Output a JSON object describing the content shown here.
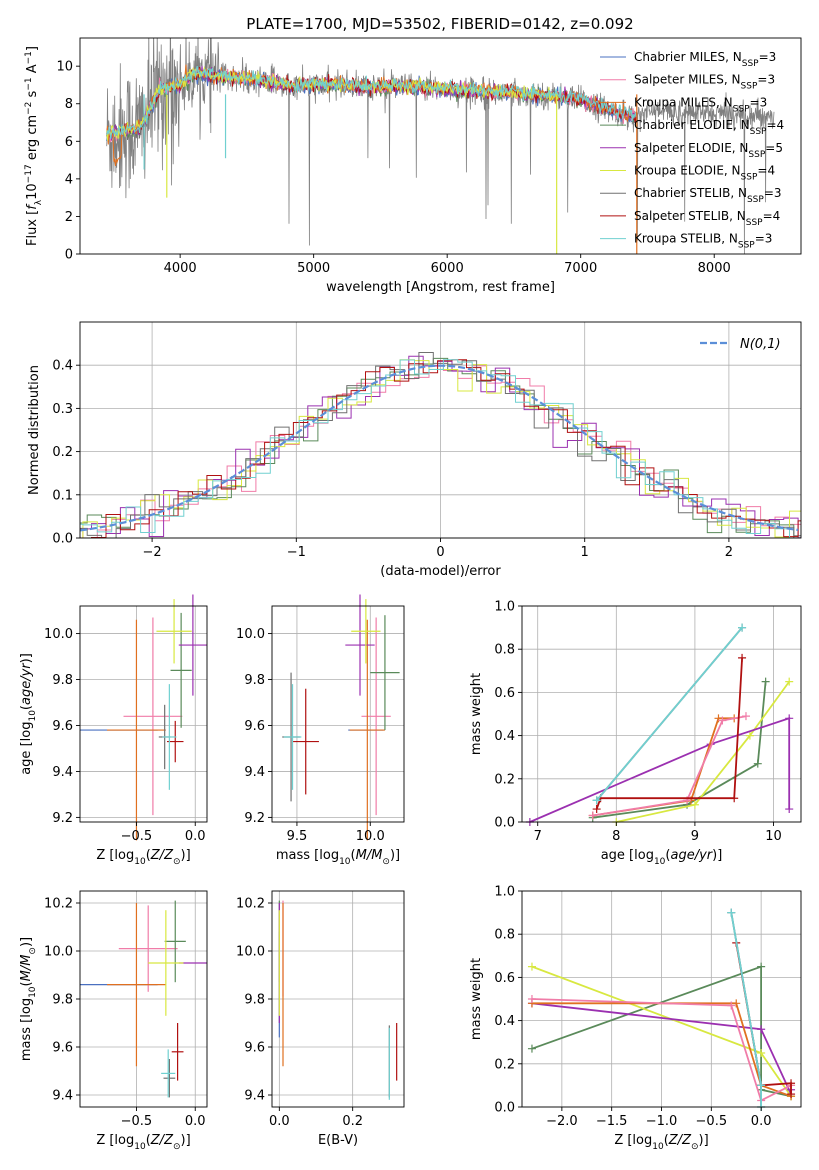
{
  "figure_title": "PLATE=1700, MJD=53502, FIBERID=0142, z=0.092",
  "models": [
    {
      "name": "Chabrier MILES, N_SSP=3",
      "color": "#4a70c0"
    },
    {
      "name": "Salpeter MILES, N_SSP=3",
      "color": "#f07ca8"
    },
    {
      "name": "Kroupa MILES, N_SSP=3",
      "color": "#e07020"
    },
    {
      "name": "Chabrier ELODIE, N_SSP=4",
      "color": "#5a8a5a"
    },
    {
      "name": "Salpeter ELODIE, N_SSP=5",
      "color": "#9b30b0"
    },
    {
      "name": "Kroupa ELODIE, N_SSP=4",
      "color": "#d8e840"
    },
    {
      "name": "Chabrier STELIB, N_SSP=3",
      "color": "#707070"
    },
    {
      "name": "Salpeter STELIB, N_SSP=4",
      "color": "#b01010"
    },
    {
      "name": "Kroupa STELIB, N_SSP=3",
      "color": "#70d0d0"
    }
  ],
  "chart_data": [
    {
      "id": "spectrum",
      "type": "line",
      "xlabel": "wavelength [Angstrom, rest frame]",
      "ylabel": "Flux [f_λ 10^-17 erg cm^-2 s^-1 A^-1]",
      "xlim": [
        3250,
        8650
      ],
      "ylim": [
        0,
        11.5
      ],
      "xticks": [
        4000,
        5000,
        6000,
        7000,
        8000
      ],
      "yticks": [
        0,
        2,
        4,
        6,
        8,
        10
      ],
      "grid": false,
      "legend": "right",
      "model_x": [
        3450,
        3550,
        3700,
        3850,
        4000,
        4100,
        4250,
        4400,
        4550,
        4700,
        4850,
        5000,
        5200,
        5400,
        5600,
        5800,
        6000,
        6200,
        6400,
        6600,
        6800,
        7000,
        7200,
        7400
      ],
      "model_y": [
        6.3,
        6.5,
        6.7,
        8.8,
        9.0,
        9.6,
        9.5,
        9.4,
        9.3,
        9.2,
        8.9,
        9.0,
        9.0,
        8.9,
        8.9,
        8.9,
        8.8,
        8.7,
        8.6,
        8.5,
        8.4,
        8.2,
        7.7,
        7.3
      ],
      "data_color": "#808080"
    },
    {
      "id": "residuals",
      "type": "histogram",
      "xlabel": "(data-model)/error",
      "ylabel": "Normed distribution",
      "xlim": [
        -2.5,
        2.5
      ],
      "ylim": [
        0,
        0.5
      ],
      "xticks": [
        -2,
        -1,
        0,
        1,
        2
      ],
      "yticks": [
        0.0,
        0.1,
        0.2,
        0.3,
        0.4
      ],
      "grid": true,
      "legend": "top-right",
      "reference": {
        "label": "N(0,1)",
        "mean": 0,
        "sigma": 1,
        "color": "#5b8fd8"
      },
      "bin_width": 0.1
    },
    {
      "id": "age_vs_Z",
      "type": "scatter",
      "xlabel": "Z [log10(Z/Z_sun)]",
      "ylabel": "age  [log10(age/yr)]",
      "xlim": [
        -0.98,
        0.1
      ],
      "ylim": [
        9.18,
        10.12
      ],
      "xticks": [
        -0.5,
        0.0
      ],
      "yticks": [
        9.2,
        9.4,
        9.6,
        9.8,
        10.0
      ],
      "grid": true,
      "points": [
        {
          "m": 0,
          "x": -0.65,
          "y": 9.58,
          "ex": 0.33,
          "ey": 0
        },
        {
          "m": 1,
          "x": -0.36,
          "y": 9.64,
          "ex": 0.25,
          "ey": 0.43
        },
        {
          "m": 2,
          "x": -0.5,
          "y": 9.58,
          "ex": 0.25,
          "ey": 0.48
        },
        {
          "m": 3,
          "x": -0.12,
          "y": 9.84,
          "ex": 0.09,
          "ey": 0.25
        },
        {
          "m": 4,
          "x": -0.02,
          "y": 9.95,
          "ex": 0.12,
          "ey": 0.22
        },
        {
          "m": 5,
          "x": -0.18,
          "y": 10.01,
          "ex": 0.15,
          "ey": 0.14
        },
        {
          "m": 6,
          "x": -0.26,
          "y": 9.55,
          "ex": 0.05,
          "ey": 0.14
        },
        {
          "m": 7,
          "x": -0.17,
          "y": 9.53,
          "ex": 0.07,
          "ey": 0.09
        },
        {
          "m": 8,
          "x": -0.22,
          "y": 9.55,
          "ex": 0.06,
          "ey": 0.23
        }
      ]
    },
    {
      "id": "age_vs_mass",
      "type": "scatter",
      "xlabel": "mass [log10(M/M_sun)]",
      "ylabel": "",
      "xlim": [
        9.33,
        10.23
      ],
      "ylim": [
        9.18,
        10.12
      ],
      "xticks": [
        9.5,
        10.0
      ],
      "yticks": [
        9.2,
        9.4,
        9.6,
        9.8,
        10.0
      ],
      "grid": true,
      "points": [
        {
          "m": 0,
          "x": 9.97,
          "y": 9.58,
          "ex": 0.12,
          "ey": 0
        },
        {
          "m": 1,
          "x": 10.04,
          "y": 9.64,
          "ex": 0.1,
          "ey": 0.43
        },
        {
          "m": 2,
          "x": 9.98,
          "y": 9.58,
          "ex": 0.12,
          "ey": 0.48
        },
        {
          "m": 3,
          "x": 10.1,
          "y": 9.83,
          "ex": 0.1,
          "ey": 0.25
        },
        {
          "m": 4,
          "x": 9.93,
          "y": 9.95,
          "ex": 0.1,
          "ey": 0.22
        },
        {
          "m": 5,
          "x": 9.97,
          "y": 10.01,
          "ex": 0.1,
          "ey": 0.14
        },
        {
          "m": 6,
          "x": 9.46,
          "y": 9.55,
          "ex": 0.06,
          "ey": 0.28
        },
        {
          "m": 7,
          "x": 9.56,
          "y": 9.53,
          "ex": 0.09,
          "ey": 0.23
        },
        {
          "m": 8,
          "x": 9.47,
          "y": 9.55,
          "ex": 0.06,
          "ey": 0.23
        }
      ]
    },
    {
      "id": "weight_vs_age",
      "type": "line",
      "xlabel": "age  [log10(age/yr)]",
      "ylabel": "mass weight",
      "xlim": [
        6.8,
        10.35
      ],
      "ylim": [
        0,
        1.0
      ],
      "xticks": [
        7,
        8,
        9,
        10
      ],
      "yticks": [
        0.0,
        0.2,
        0.4,
        0.6,
        0.8,
        1.0
      ],
      "grid": true,
      "series": [
        {
          "m": 3,
          "x": [
            7.7,
            8.9,
            9.8,
            9.9
          ],
          "y": [
            0.02,
            0.08,
            0.27,
            0.65
          ]
        },
        {
          "m": 5,
          "x": [
            8.0,
            9.0,
            9.7,
            10.2
          ],
          "y": [
            0.0,
            0.08,
            0.4,
            0.65
          ]
        },
        {
          "m": 4,
          "x": [
            6.9,
            9.2,
            10.2,
            10.2
          ],
          "y": [
            0.0,
            0.36,
            0.48,
            0.06
          ]
        },
        {
          "m": 2,
          "x": [
            7.7,
            8.95,
            9.3,
            9.5
          ],
          "y": [
            0.03,
            0.1,
            0.48,
            0.48
          ]
        },
        {
          "m": 1,
          "x": [
            7.7,
            8.9,
            9.35,
            9.65
          ],
          "y": [
            0.03,
            0.1,
            0.47,
            0.49
          ]
        },
        {
          "m": 7,
          "x": [
            7.75,
            7.8,
            9.5,
            9.6
          ],
          "y": [
            0.06,
            0.11,
            0.11,
            0.76
          ]
        },
        {
          "m": 6,
          "x": [
            7.75,
            9.6
          ],
          "y": [
            0.1,
            0.9
          ]
        },
        {
          "m": 8,
          "x": [
            7.75,
            9.6
          ],
          "y": [
            0.1,
            0.9
          ]
        }
      ]
    },
    {
      "id": "mass_vs_Z",
      "type": "scatter",
      "xlabel": "Z [log10(Z/Z_sun)]",
      "ylabel": "mass [log10(M/M_sun)]",
      "xlim": [
        -0.98,
        0.1
      ],
      "ylim": [
        9.35,
        10.25
      ],
      "xticks": [
        -0.5,
        0.0
      ],
      "yticks": [
        9.4,
        9.6,
        9.8,
        10.0,
        10.2
      ],
      "grid": true,
      "points": [
        {
          "m": 0,
          "x": -0.65,
          "y": 9.86,
          "ex": 0.33,
          "ey": 0
        },
        {
          "m": 1,
          "x": -0.4,
          "y": 10.01,
          "ex": 0.25,
          "ey": 0.18
        },
        {
          "m": 2,
          "x": -0.5,
          "y": 9.86,
          "ex": 0.25,
          "ey": 0.34
        },
        {
          "m": 3,
          "x": -0.17,
          "y": 10.04,
          "ex": 0.09,
          "ey": 0.17
        },
        {
          "m": 4,
          "x": -0.02,
          "y": 9.95,
          "ex": 0.12,
          "ey": 0
        },
        {
          "m": 5,
          "x": -0.25,
          "y": 9.95,
          "ex": 0.15,
          "ey": 0.22
        },
        {
          "m": 6,
          "x": -0.22,
          "y": 9.47,
          "ex": 0.05,
          "ey": 0.08
        },
        {
          "m": 7,
          "x": -0.15,
          "y": 9.58,
          "ex": 0.05,
          "ey": 0.12
        },
        {
          "m": 8,
          "x": -0.23,
          "y": 9.49,
          "ex": 0.06,
          "ey": 0.1
        }
      ]
    },
    {
      "id": "mass_vs_EBV",
      "type": "scatter",
      "xlabel": "E(B-V)",
      "ylabel": "",
      "xlim": [
        -0.02,
        0.34
      ],
      "ylim": [
        9.35,
        10.25
      ],
      "xticks": [
        0.0,
        0.2
      ],
      "yticks": [
        9.4,
        9.6,
        9.8,
        10.0,
        10.2
      ],
      "grid": true,
      "points": [
        {
          "m": 0,
          "x": 0.0,
          "y": 9.86,
          "ex": 0,
          "ey": 0.22
        },
        {
          "m": 1,
          "x": 0.01,
          "y": 10.01,
          "ex": 0,
          "ey": 0.2
        },
        {
          "m": 2,
          "x": 0.01,
          "y": 9.86,
          "ex": 0,
          "ey": 0.34
        },
        {
          "m": 3,
          "x": 0.0,
          "y": 10.04,
          "ex": 0,
          "ey": 0.17
        },
        {
          "m": 4,
          "x": 0.0,
          "y": 9.95,
          "ex": 0,
          "ey": 0.25
        },
        {
          "m": 5,
          "x": 0.0,
          "y": 9.95,
          "ex": 0,
          "ey": 0.22
        },
        {
          "m": 6,
          "x": 0.3,
          "y": 9.54,
          "ex": 0,
          "ey": 0.15
        },
        {
          "m": 7,
          "x": 0.32,
          "y": 9.58,
          "ex": 0,
          "ey": 0.12
        },
        {
          "m": 8,
          "x": 0.3,
          "y": 9.53,
          "ex": 0,
          "ey": 0.15
        }
      ]
    },
    {
      "id": "weight_vs_Z",
      "type": "line",
      "xlabel": "Z [log10(Z/Z_sun)]",
      "ylabel": "mass weight",
      "xlim": [
        -2.4,
        0.4
      ],
      "ylim": [
        0,
        1.0
      ],
      "xticks": [
        -2.0,
        -1.5,
        -1.0,
        -0.5,
        0.0
      ],
      "yticks": [
        0.0,
        0.2,
        0.4,
        0.6,
        0.8,
        1.0
      ],
      "grid": true,
      "series": [
        {
          "m": 3,
          "x": [
            -2.3,
            0.0,
            0.0,
            0.3
          ],
          "y": [
            0.27,
            0.65,
            0.08,
            0.05
          ]
        },
        {
          "m": 5,
          "x": [
            -2.3,
            0.0,
            0.3,
            0.3
          ],
          "y": [
            0.65,
            0.25,
            0.05,
            0.1
          ]
        },
        {
          "m": 4,
          "x": [
            -2.3,
            0.0,
            0.3,
            0.3
          ],
          "y": [
            0.48,
            0.36,
            0.06,
            0.08
          ]
        },
        {
          "m": 2,
          "x": [
            -2.3,
            -0.25,
            0.0,
            0.3
          ],
          "y": [
            0.48,
            0.48,
            0.1,
            0.05
          ]
        },
        {
          "m": 1,
          "x": [
            -2.3,
            -0.3,
            0.0,
            0.3
          ],
          "y": [
            0.5,
            0.47,
            0.03,
            0.1
          ]
        },
        {
          "m": 7,
          "x": [
            -0.25,
            0.0,
            0.3,
            0.3
          ],
          "y": [
            0.76,
            0.1,
            0.11,
            0.06
          ]
        },
        {
          "m": 6,
          "x": [
            -0.3,
            0.0,
            0.0
          ],
          "y": [
            0.9,
            0.1,
            0.0
          ]
        },
        {
          "m": 8,
          "x": [
            -0.3,
            0.0,
            0.0
          ],
          "y": [
            0.9,
            0.1,
            0.0
          ]
        }
      ]
    }
  ]
}
